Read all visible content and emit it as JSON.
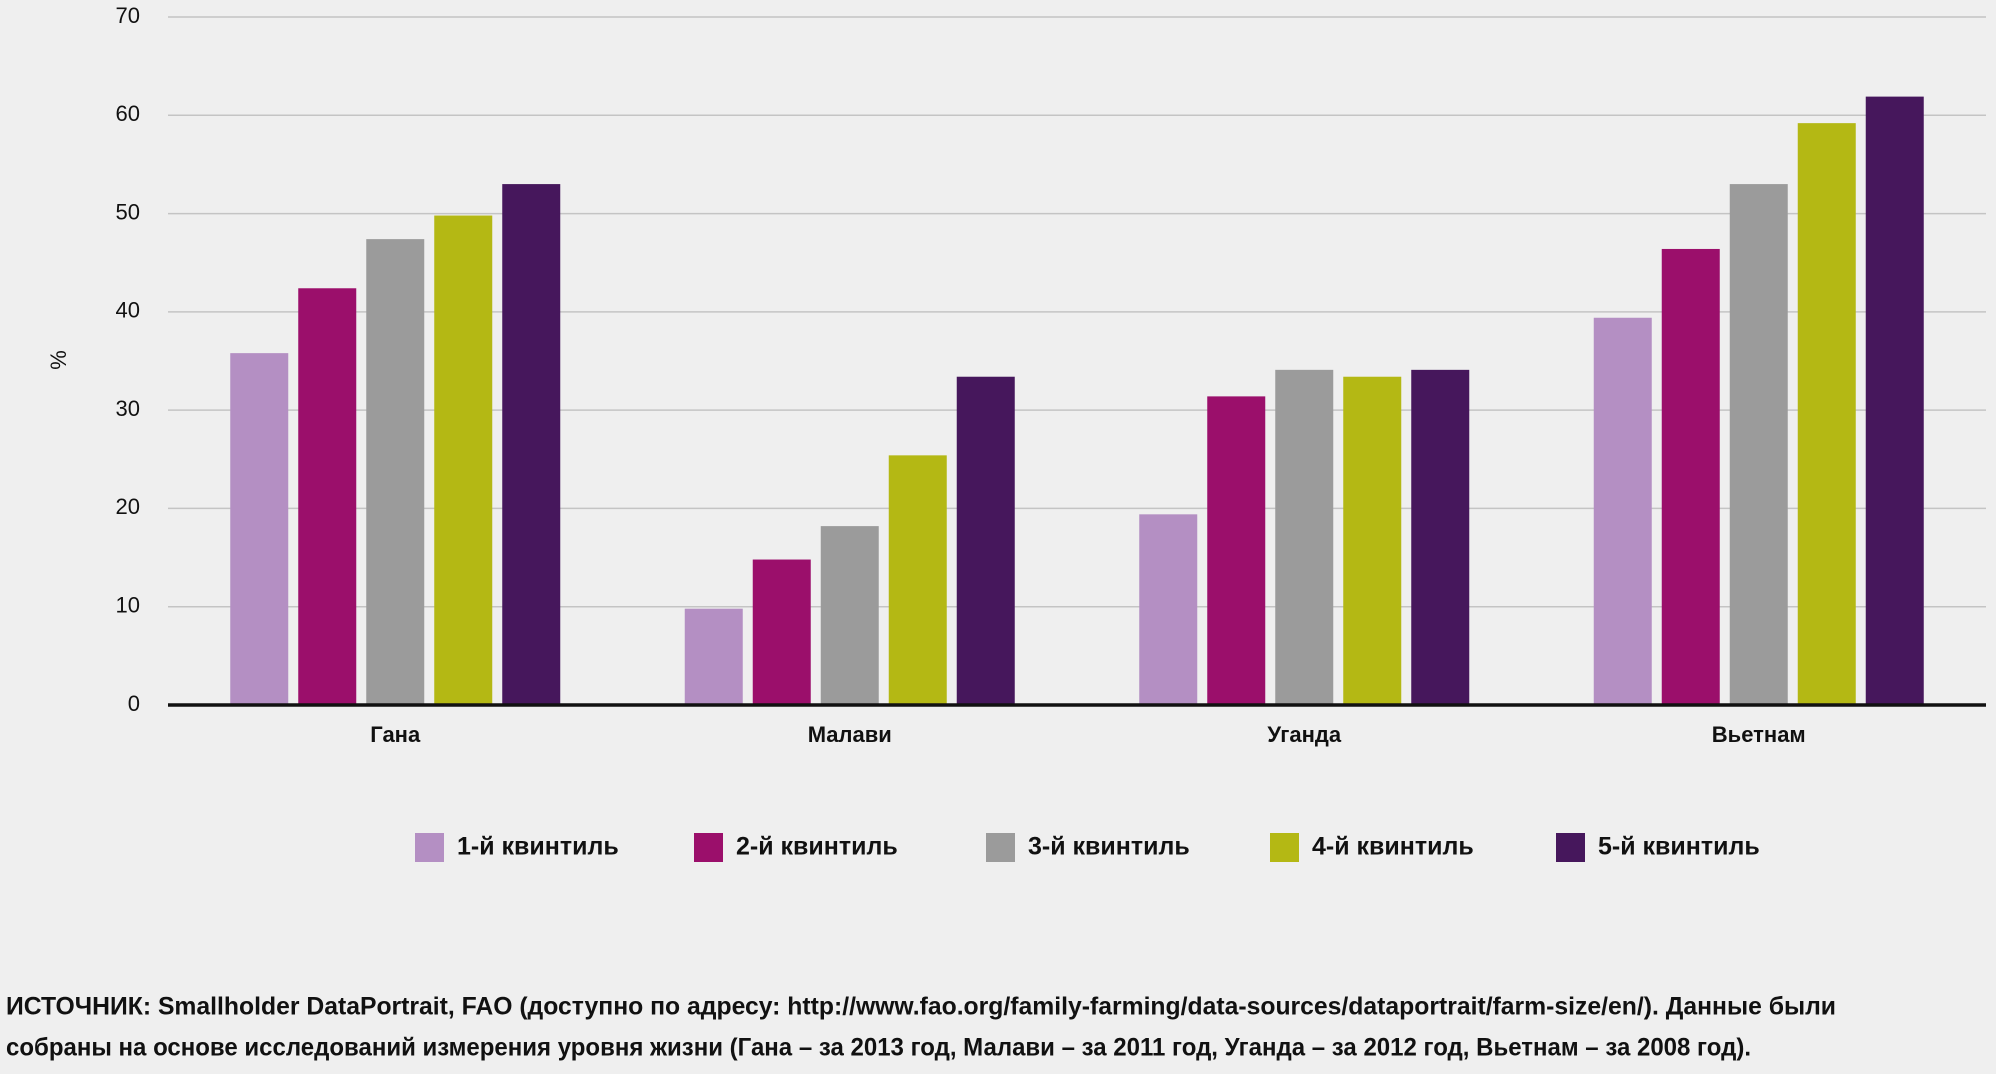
{
  "chart_data": {
    "type": "bar",
    "y_label": "%",
    "categories": [
      "Гана",
      "Малави",
      "Уганда",
      "Вьетнам"
    ],
    "series": [
      {
        "name": "1-й квинтиль",
        "color": "#b48fc3",
        "values": [
          35.8,
          9.8,
          19.4,
          39.4
        ]
      },
      {
        "name": "2-й квинтиль",
        "color": "#9b0f6b",
        "values": [
          42.4,
          14.8,
          31.4,
          46.4
        ]
      },
      {
        "name": "3-й квинтиль",
        "color": "#9b9b9b",
        "values": [
          47.4,
          18.2,
          34.1,
          53.0
        ]
      },
      {
        "name": "4-й квинтиль",
        "color": "#b4b814",
        "values": [
          49.8,
          25.4,
          33.4,
          59.2
        ]
      },
      {
        "name": "5-й квинтиль",
        "color": "#46175c",
        "values": [
          53.0,
          33.4,
          34.1,
          61.9
        ]
      }
    ],
    "ylim": [
      0,
      70
    ],
    "yticks": [
      0,
      10,
      20,
      30,
      40,
      50,
      60,
      70
    ],
    "grid": true,
    "source": [
      "ИСТОЧНИК: Smallholder DataPortrait, FAO (доступно по адресу: http://www.fao.org/family-farming/data-sources/dataportrait/farm-size/en/). Данные были",
      "собраны на основе исследований измерения уровня жизни (Гана – за 2013 год, Малави – за 2011 год, Уганда – за 2012 год, Вьетнам – за 2008 год)."
    ]
  }
}
